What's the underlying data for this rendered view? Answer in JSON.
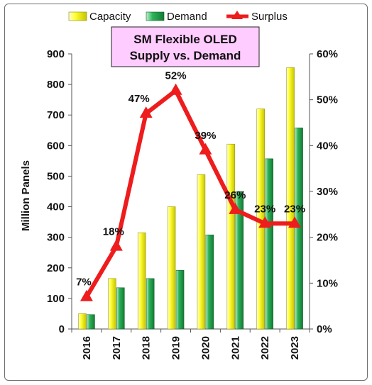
{
  "chart_data": {
    "type": "bar",
    "title": "SM Flexible OLED Supply vs. Demand",
    "title_lines": [
      "SM Flexible OLED",
      "Supply vs. Demand"
    ],
    "categories": [
      "2016",
      "2017",
      "2018",
      "2019",
      "2020",
      "2021",
      "2022",
      "2023"
    ],
    "series": [
      {
        "name": "Capacity",
        "type": "bar",
        "axis": "left",
        "color": "#ffff00",
        "values": [
          50,
          165,
          315,
          400,
          505,
          605,
          720,
          855
        ]
      },
      {
        "name": "Demand",
        "type": "bar",
        "axis": "left",
        "color": "#1fa24a",
        "values": [
          47,
          135,
          165,
          192,
          308,
          450,
          557,
          658
        ]
      },
      {
        "name": "Surplus",
        "type": "line",
        "axis": "right",
        "color": "#ee1c1c",
        "values": [
          7,
          18,
          47,
          52,
          39,
          26,
          23,
          23
        ],
        "labels": [
          "7%",
          "18%",
          "47%",
          "52%",
          "39%",
          "26%",
          "23%",
          "23%"
        ]
      }
    ],
    "ylabel": "Million Panels",
    "ylim": [
      0,
      900
    ],
    "yticks": [
      "0",
      "100",
      "200",
      "300",
      "400",
      "500",
      "600",
      "700",
      "800",
      "900"
    ],
    "y2lim": [
      0,
      60
    ],
    "y2ticks": [
      "0%",
      "10%",
      "20%",
      "30%",
      "40%",
      "50%",
      "60%"
    ],
    "legend": {
      "position": "top",
      "items": [
        "Capacity",
        "Demand",
        "Surplus"
      ]
    },
    "title_box_color": "#ffccff",
    "grid": false
  }
}
